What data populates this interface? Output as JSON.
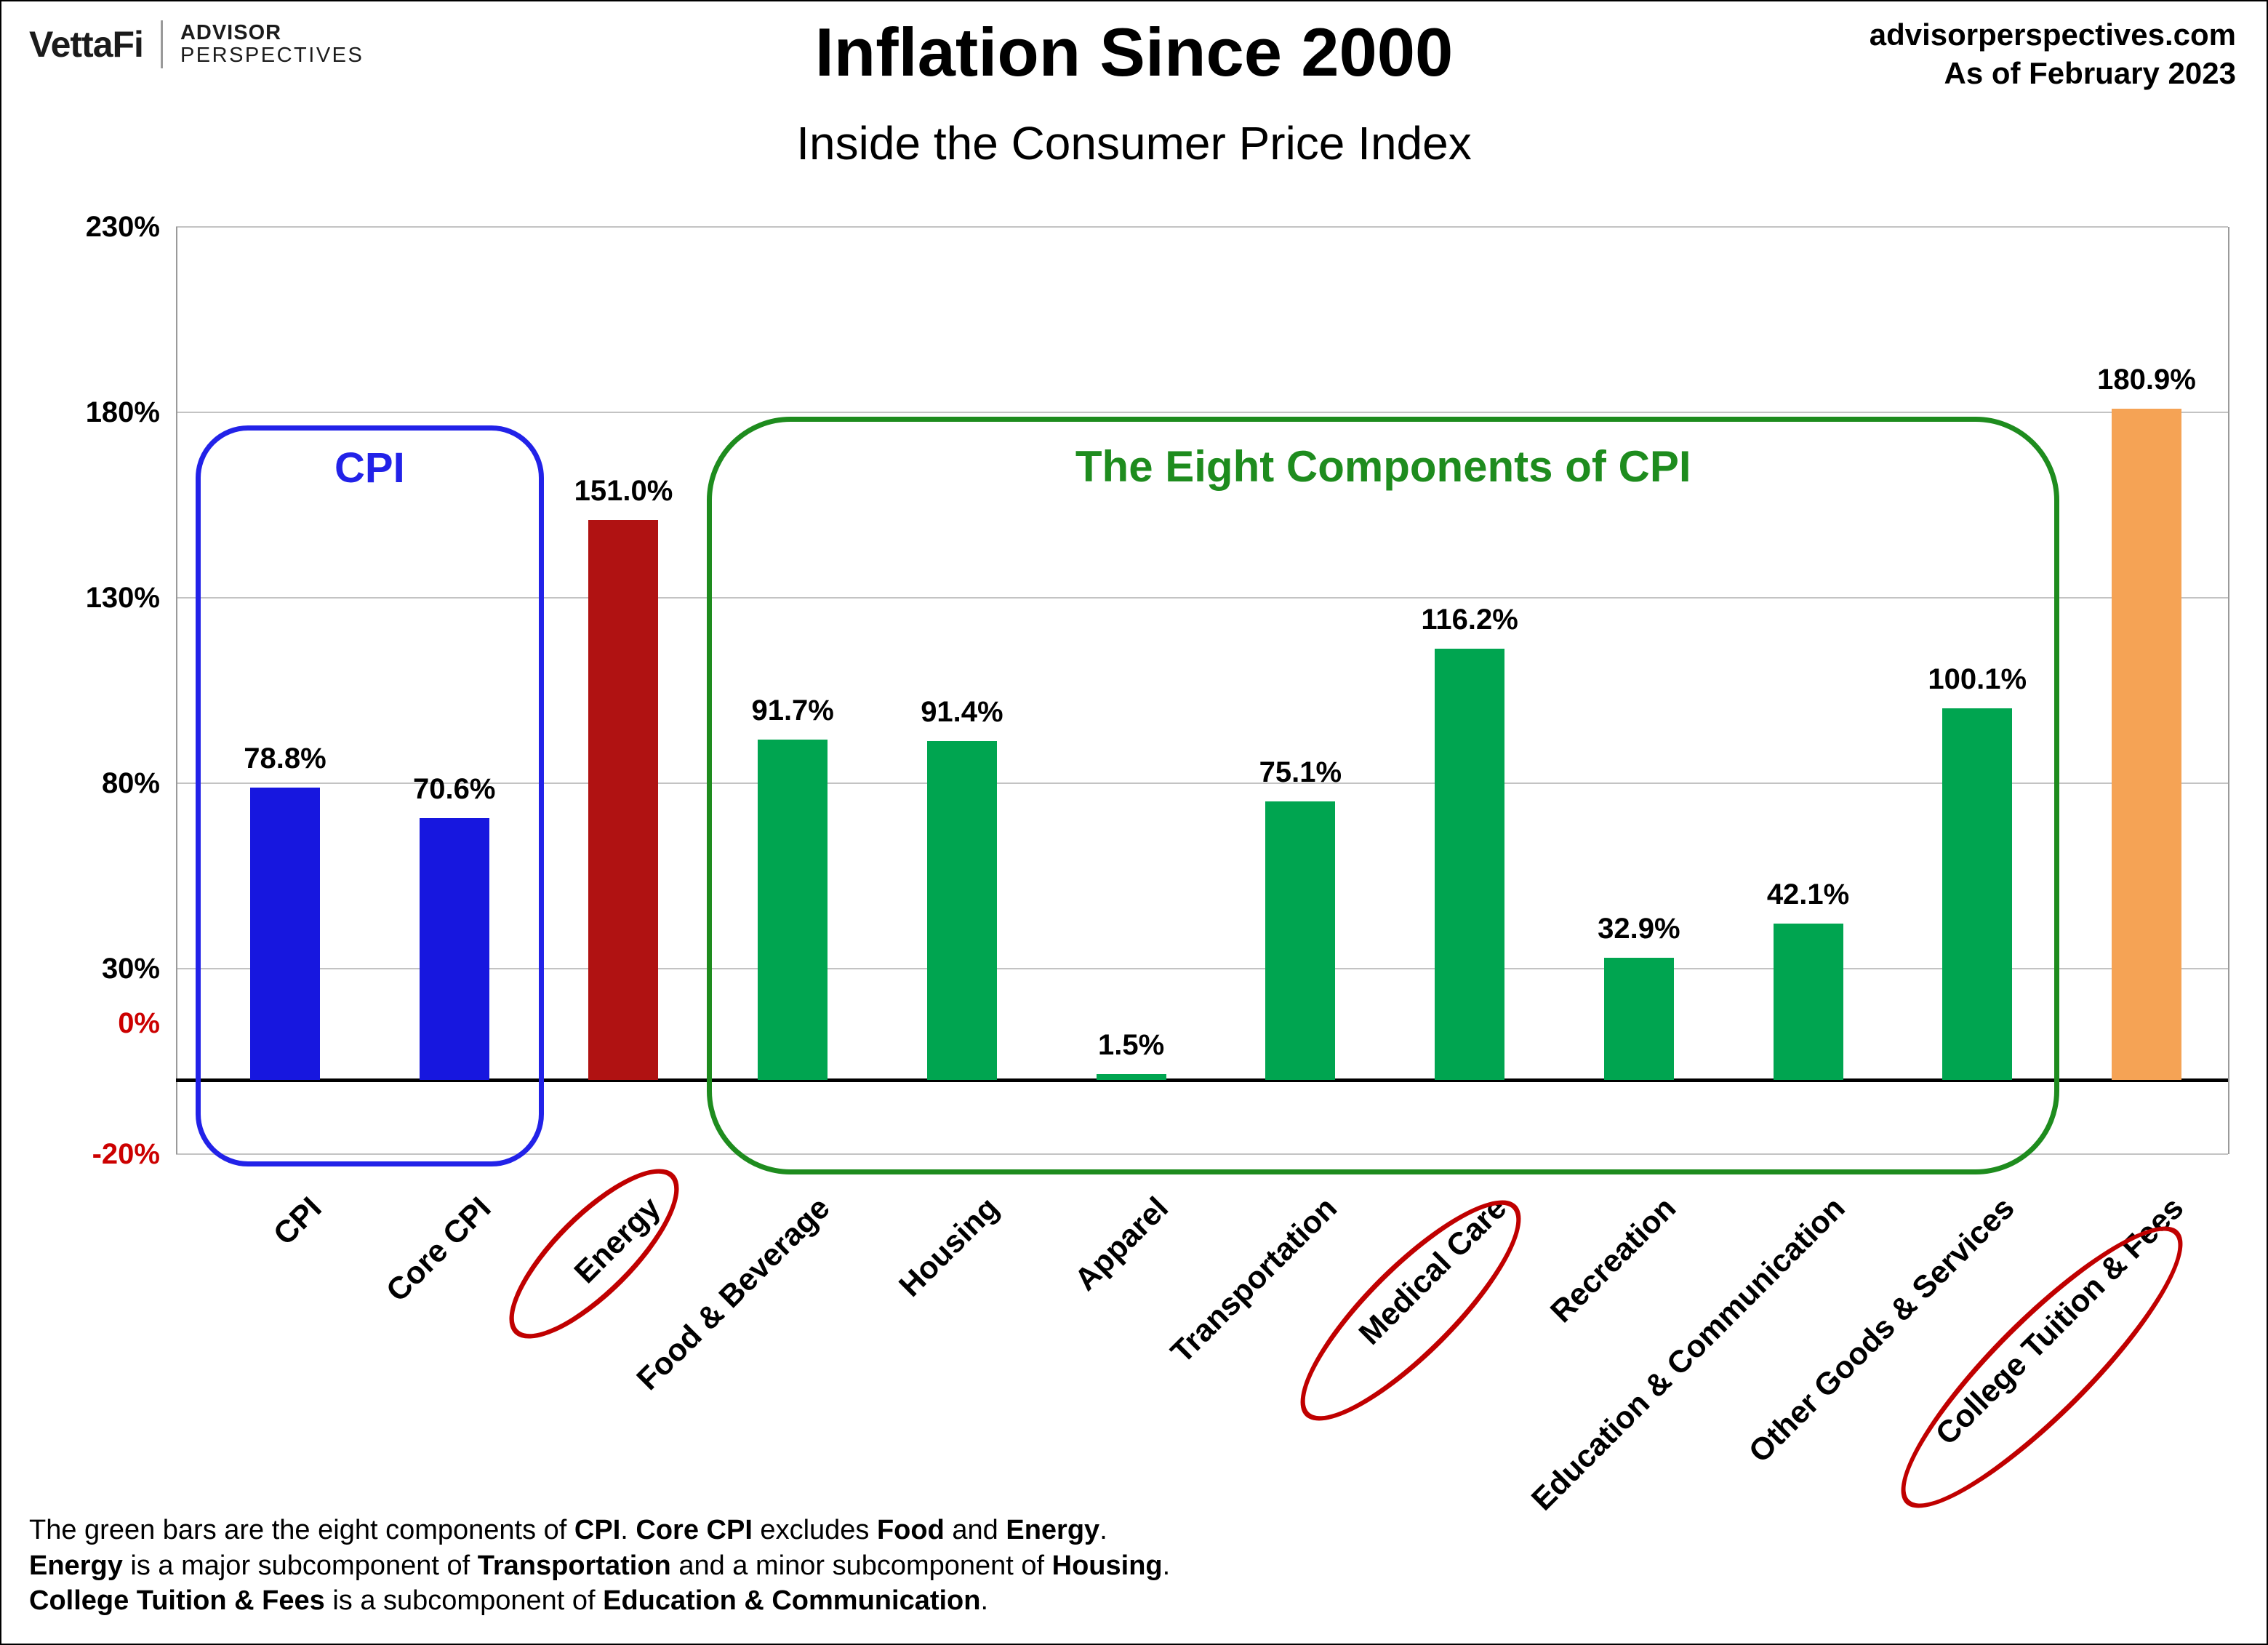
{
  "header": {
    "brand": {
      "name": "VettaFi",
      "advisor": "ADVISOR",
      "perspectives": "PERSPECTIVES"
    },
    "title": "Inflation Since 2000",
    "subtitle": "Inside the Consumer Price Index",
    "source": "advisorperspectives.com",
    "as_of": "As of February 2023"
  },
  "chart_data": {
    "type": "bar",
    "title": "Inflation Since 2000",
    "subtitle": "Inside the Consumer Price Index",
    "unit": "%",
    "categories": [
      "CPI",
      "Core CPI",
      "Energy",
      "Food & Beverage",
      "Housing",
      "Apparel",
      "Transportation",
      "Medical Care",
      "Recreation",
      "Education & Communication",
      "Other Goods & Services",
      "College Tuition & Fees"
    ],
    "values": [
      78.8,
      70.6,
      151.0,
      91.7,
      91.4,
      1.5,
      75.1,
      116.2,
      32.9,
      42.1,
      100.1,
      180.9
    ],
    "value_labels": [
      "78.8%",
      "70.6%",
      "151.0%",
      "91.7%",
      "91.4%",
      "1.5%",
      "75.1%",
      "116.2%",
      "32.9%",
      "42.1%",
      "100.1%",
      "180.9%"
    ],
    "bar_colors": [
      "#1717df",
      "#1717df",
      "#b01212",
      "#00a550",
      "#00a550",
      "#00a550",
      "#00a550",
      "#00a550",
      "#00a550",
      "#00a550",
      "#00a550",
      "#f5a355"
    ],
    "ylim": [
      -20,
      230
    ],
    "yticks": [
      {
        "label": "230%",
        "value": 230,
        "color": "#000000"
      },
      {
        "label": "180%",
        "value": 180,
        "color": "#000000"
      },
      {
        "label": "130%",
        "value": 130,
        "color": "#000000"
      },
      {
        "label": "80%",
        "value": 80,
        "color": "#000000"
      },
      {
        "label": "30%",
        "value": 30,
        "color": "#000000"
      },
      {
        "label": "0%",
        "value": 0,
        "color": "#cc0000"
      },
      {
        "label": "-20%",
        "value": -20,
        "color": "#cc0000"
      }
    ],
    "grid": true,
    "legend": null,
    "annotations": {
      "cpi_box": {
        "label": "CPI",
        "color": "#2222e8",
        "from": "CPI",
        "to": "Core CPI"
      },
      "components_box": {
        "label": "The Eight Components of CPI",
        "color": "#1e8c1e",
        "from": "Food & Beverage",
        "to": "Other Goods & Services"
      },
      "circled_labels": {
        "color": "#c00000",
        "items": [
          "Energy",
          "Medical Care",
          "College Tuition & Fees"
        ]
      }
    }
  },
  "footer": {
    "lines": [
      [
        {
          "t": "The green bars are the eight components of ",
          "b": false
        },
        {
          "t": "CPI",
          "b": true
        },
        {
          "t": ". ",
          "b": false
        },
        {
          "t": "Core CPI",
          "b": true
        },
        {
          "t": " excludes ",
          "b": false
        },
        {
          "t": "Food",
          "b": true
        },
        {
          "t": " and ",
          "b": false
        },
        {
          "t": "Energy",
          "b": true
        },
        {
          "t": ".",
          "b": false
        }
      ],
      [
        {
          "t": "Energy",
          "b": true
        },
        {
          "t": " is a major subcomponent of ",
          "b": false
        },
        {
          "t": "Transportation",
          "b": true
        },
        {
          "t": " and a minor subcomponent of ",
          "b": false
        },
        {
          "t": "Housing",
          "b": true
        },
        {
          "t": ".",
          "b": false
        }
      ],
      [
        {
          "t": "College Tuition & Fees",
          "b": true
        },
        {
          "t": " is a subcomponent of ",
          "b": false
        },
        {
          "t": "Education & Communication",
          "b": true
        },
        {
          "t": ".",
          "b": false
        }
      ]
    ]
  }
}
